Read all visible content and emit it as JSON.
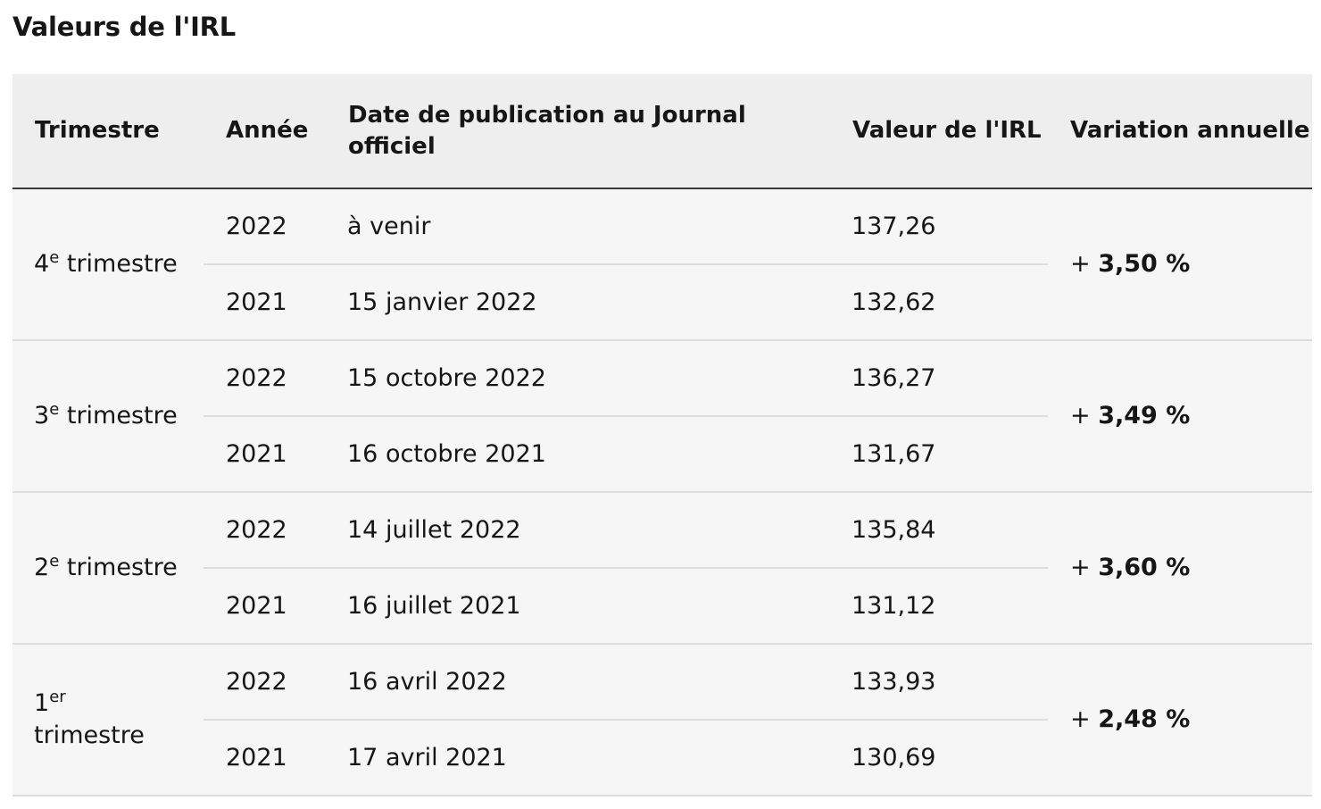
{
  "page": {
    "title": "Valeurs de l'IRL"
  },
  "table": {
    "headers": [
      "Trimestre",
      "Année",
      "Date de publication au Journal officiel",
      "Valeur de l'IRL",
      "Variation annuelle"
    ],
    "quarters": [
      {
        "number": "4",
        "suffix": "e",
        "label": "trimestre",
        "variation_sign": "+",
        "variation_value": "3,50 %",
        "rows": [
          {
            "year": "2022",
            "date": "à venir",
            "value": "137,26"
          },
          {
            "year": "2021",
            "date": "15 janvier 2022",
            "value": "132,62"
          }
        ]
      },
      {
        "number": "3",
        "suffix": "e",
        "label": "trimestre",
        "variation_sign": "+",
        "variation_value": "3,49 %",
        "rows": [
          {
            "year": "2022",
            "date": "15 octobre 2022",
            "value": "136,27"
          },
          {
            "year": "2021",
            "date": "16 octobre 2021",
            "value": "131,67"
          }
        ]
      },
      {
        "number": "2",
        "suffix": "e",
        "label": "trimestre",
        "variation_sign": "+",
        "variation_value": "3,60 %",
        "rows": [
          {
            "year": "2022",
            "date": "14 juillet 2022",
            "value": "135,84"
          },
          {
            "year": "2021",
            "date": "16 juillet 2021",
            "value": "131,12"
          }
        ]
      },
      {
        "number": "1",
        "suffix": "er",
        "label": "trimestre",
        "variation_sign": "+",
        "variation_value": "2,48 %",
        "rows": [
          {
            "year": "2022",
            "date": "16 avril 2022",
            "value": "133,93"
          },
          {
            "year": "2021",
            "date": "17 avril 2021",
            "value": "130,69"
          }
        ]
      }
    ]
  }
}
